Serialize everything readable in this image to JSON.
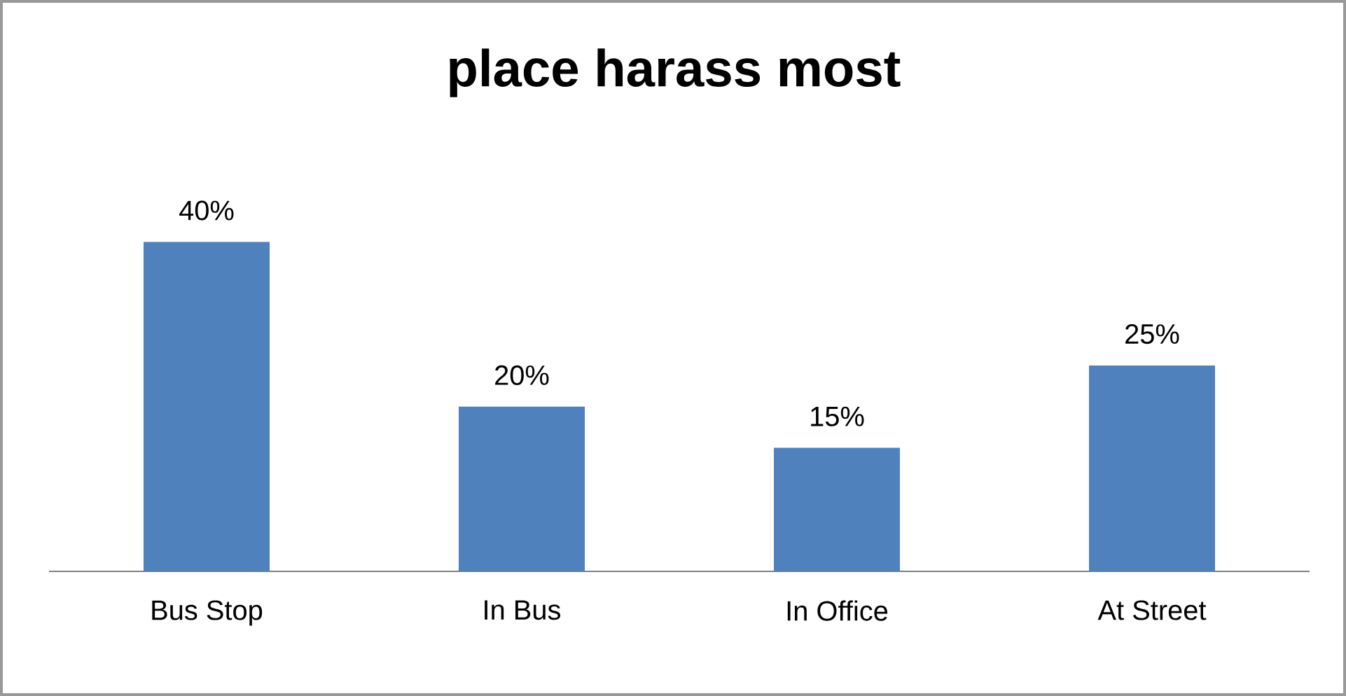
{
  "chart_data": {
    "type": "bar",
    "title": "place harass most",
    "categories": [
      "Bus Stop",
      "In Bus",
      "In Office",
      "At Street"
    ],
    "values": [
      40,
      20,
      15,
      25
    ],
    "value_labels": [
      "40%",
      "20%",
      "15%",
      "25%"
    ],
    "color": "#4f81bd"
  }
}
